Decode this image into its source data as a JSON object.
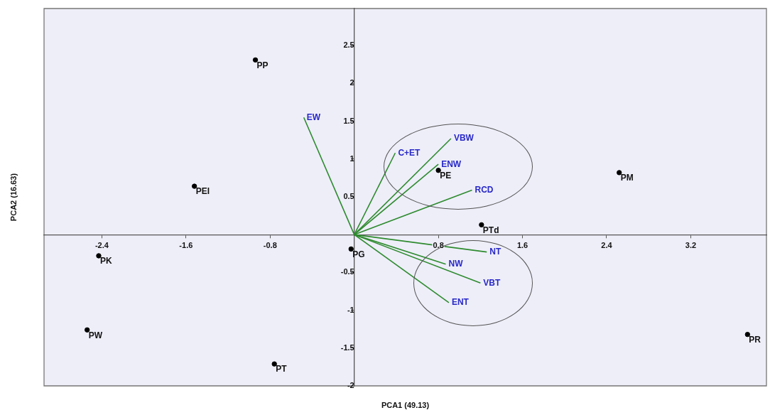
{
  "chart_data": {
    "type": "scatter",
    "xlabel": "PCA1 (49.13)",
    "ylabel": "PCA2 (16.63)",
    "xlim": [
      -2.95,
      3.92
    ],
    "ylim": [
      -2.0,
      2.99
    ],
    "xticks": [
      -2.4,
      -1.6,
      -0.8,
      0.8,
      1.6,
      2.4,
      3.2
    ],
    "yticks": [
      2.5,
      2,
      1.5,
      1,
      0.5,
      -0.5,
      -1,
      -1.5,
      -2
    ],
    "grid": false,
    "legend": false,
    "marker": "circle",
    "series": [
      {
        "color": "#000000",
        "x": [
          -0.94,
          -1.52,
          -2.43,
          -2.54,
          -0.76,
          -0.03,
          0.8,
          1.21,
          2.52,
          3.74
        ],
        "values": [
          2.31,
          0.64,
          -0.28,
          -1.26,
          -1.71,
          -0.19,
          0.85,
          0.13,
          0.82,
          -1.32
        ]
      },
      {
        "name": "EW",
        "type": "line",
        "marker": "none",
        "color": "#2e8b2e",
        "x": [
          0,
          -0.48
        ],
        "values": [
          0,
          1.55
        ]
      },
      {
        "name": "C+ET",
        "type": "line",
        "marker": "none",
        "color": "#2e8b2e",
        "x": [
          0,
          0.39
        ],
        "values": [
          0,
          1.08
        ]
      },
      {
        "name": "VBW",
        "type": "line",
        "marker": "none",
        "color": "#2e8b2e",
        "x": [
          0,
          0.92
        ],
        "values": [
          0,
          1.27
        ]
      },
      {
        "name": "ENW",
        "type": "line",
        "marker": "none",
        "color": "#2e8b2e",
        "x": [
          0,
          0.8
        ],
        "values": [
          0,
          0.93
        ]
      },
      {
        "name": "RCD",
        "type": "line",
        "marker": "none",
        "color": "#2e8b2e",
        "x": [
          0,
          1.12
        ],
        "values": [
          0,
          0.59
        ]
      },
      {
        "name": "NT",
        "type": "line",
        "marker": "none",
        "color": "#2e8b2e",
        "x": [
          0,
          1.26
        ],
        "values": [
          0,
          -0.23
        ]
      },
      {
        "name": "NW",
        "type": "line",
        "marker": "none",
        "color": "#2e8b2e",
        "x": [
          0,
          0.87
        ],
        "values": [
          0,
          -0.39
        ]
      },
      {
        "name": "VBT",
        "type": "line",
        "marker": "none",
        "color": "#2e8b2e",
        "x": [
          0,
          1.2
        ],
        "values": [
          0,
          -0.64
        ]
      },
      {
        "name": "ENT",
        "type": "line",
        "marker": "none",
        "color": "#2e8b2e",
        "x": [
          0,
          0.9
        ],
        "values": [
          0,
          -0.9
        ]
      }
    ],
    "annotations": [
      {
        "text": "PP",
        "x": -0.94,
        "y": 2.31
      },
      {
        "text": "PEI",
        "x": -1.52,
        "y": 0.64
      },
      {
        "text": "PK",
        "x": -2.43,
        "y": -0.28
      },
      {
        "text": "PW",
        "x": -2.54,
        "y": -1.26
      },
      {
        "text": "PT",
        "x": -0.76,
        "y": -1.71
      },
      {
        "text": "PG",
        "x": -0.03,
        "y": -0.19
      },
      {
        "text": "PE",
        "x": 0.8,
        "y": 0.85
      },
      {
        "text": "PTd",
        "x": 1.21,
        "y": 0.13
      },
      {
        "text": "PM",
        "x": 2.52,
        "y": 0.82
      },
      {
        "text": "PR",
        "x": 3.74,
        "y": -1.32
      }
    ]
  }
}
